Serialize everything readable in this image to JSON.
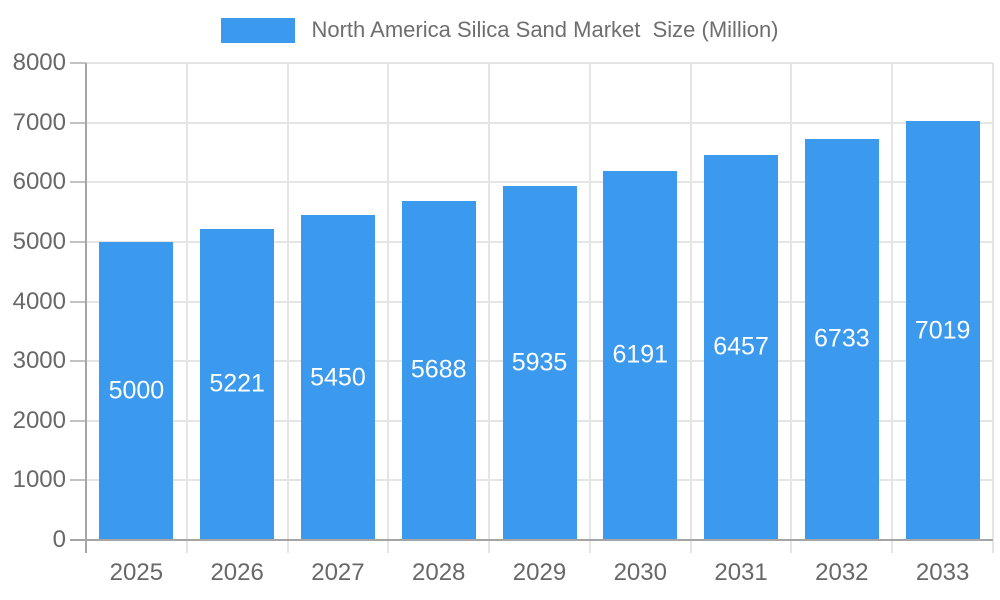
{
  "legend": {
    "label": "North America Silica Sand Market  Size (Million)"
  },
  "chart_data": {
    "type": "bar",
    "title": "North America Silica Sand Market  Size (Million)",
    "categories": [
      "2025",
      "2026",
      "2027",
      "2028",
      "2029",
      "2030",
      "2031",
      "2032",
      "2033"
    ],
    "series": [
      {
        "name": "North America Silica Sand Market  Size (Million)",
        "values": [
          5000,
          5221,
          5450,
          5688,
          5935,
          6191,
          6457,
          6733,
          7019
        ]
      }
    ],
    "xlabel": "",
    "ylabel": "",
    "ylim": [
      0,
      8000
    ],
    "y_ticks": [
      0,
      1000,
      2000,
      3000,
      4000,
      5000,
      6000,
      7000,
      8000
    ],
    "grid": true,
    "legend_position": "top",
    "value_labels": "inside-center",
    "colors": {
      "bar": "#3B99EE",
      "value_label": "#FFFFFF",
      "axis_text": "#686868",
      "legend_text": "#6E6E6E",
      "grid_line": "#E5E5E5",
      "axis_line": "#A5A5A5",
      "tick_mark": "#C2C2C2",
      "background": "#FFFFFF"
    }
  }
}
